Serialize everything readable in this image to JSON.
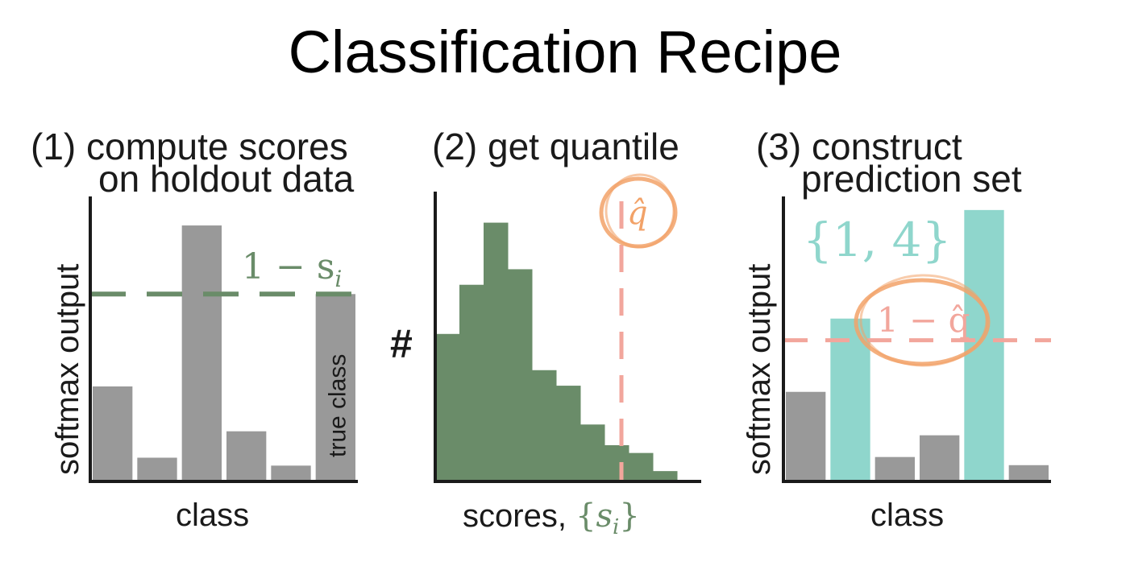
{
  "slide": {
    "title": "Classification Recipe"
  },
  "panels": [
    {
      "title_line1": "(1) compute scores",
      "title_line2": "on holdout data",
      "xlabel": "class",
      "ylabel": "softmax output"
    },
    {
      "title_line1": "(2) get quantile",
      "xlabel_prefix": "scores,",
      "ylabel": "#"
    },
    {
      "title_line1": "(3) construct",
      "title_line2": "prediction set",
      "xlabel": "class",
      "ylabel": "softmax output"
    }
  ],
  "annotations": {
    "threshold_label": "1 − s",
    "threshold_sub": "i",
    "true_class_label": "true class",
    "qhat_label": "q̂",
    "one_minus_qhat_label": "1 − q̂",
    "prediction_set_label": "{1, 4}",
    "scores_set_open": "{",
    "scores_set_var": "s",
    "scores_set_sub": "i",
    "scores_set_close": "}"
  },
  "colors": {
    "gray_bar": "#999999",
    "green": "#6a8c69",
    "teal": "#8fd6cc",
    "salmon": "#f2a69c",
    "orange_circle": "#f2a268"
  },
  "chart_data": [
    {
      "type": "bar",
      "xlabel": "class",
      "ylabel": "softmax output",
      "values": [
        0.36,
        0.09,
        0.97,
        0.19,
        0.06,
        0.71
      ],
      "true_class_index": 5,
      "threshold": 0.71,
      "ylim": [
        0,
        1.08
      ]
    },
    {
      "type": "bar",
      "xlabel": "scores, {s_i}",
      "ylabel": "#",
      "values": [
        0.57,
        0.76,
        1.0,
        0.82,
        0.43,
        0.37,
        0.22,
        0.14,
        0.11,
        0.04
      ],
      "quantile_position": 0.7,
      "ylim": [
        0,
        1.12
      ]
    },
    {
      "type": "bar",
      "xlabel": "class",
      "ylabel": "softmax output",
      "values": [
        0.33,
        0.6,
        0.09,
        0.17,
        1.0,
        0.06
      ],
      "prediction_set": [
        1,
        4
      ],
      "threshold": 0.52,
      "ylim": [
        0,
        1.05
      ]
    }
  ]
}
